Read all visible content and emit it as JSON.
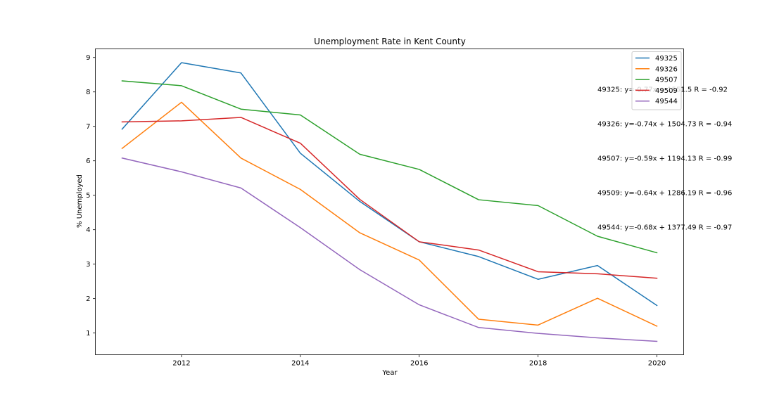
{
  "chart_data": {
    "type": "line",
    "title": "Unemployment Rate in Kent County",
    "xlabel": "Year",
    "ylabel": "% Unemployed",
    "xlim": [
      2010.55,
      2020.45
    ],
    "ylim": [
      0.37,
      9.25
    ],
    "xticks": [
      2012,
      2014,
      2016,
      2018,
      2020
    ],
    "yticks": [
      1,
      2,
      3,
      4,
      5,
      6,
      7,
      8,
      9
    ],
    "grid": false,
    "legend_position": "top-right",
    "x": [
      2011,
      2012,
      2013,
      2014,
      2015,
      2016,
      2017,
      2018,
      2019,
      2020
    ],
    "series": [
      {
        "name": "49325",
        "color": "#1f77b4",
        "values": [
          6.92,
          8.85,
          8.55,
          6.22,
          4.82,
          3.65,
          3.22,
          2.56,
          2.96,
          1.8
        ]
      },
      {
        "name": "49326",
        "color": "#ff7f0e",
        "values": [
          6.36,
          7.7,
          6.08,
          5.17,
          3.91,
          3.12,
          1.4,
          1.23,
          2.01,
          1.2
        ]
      },
      {
        "name": "49507",
        "color": "#2ca02c",
        "values": [
          8.32,
          8.18,
          7.5,
          7.33,
          6.19,
          5.75,
          4.87,
          4.7,
          3.81,
          3.33
        ]
      },
      {
        "name": "49509",
        "color": "#d62728",
        "values": [
          7.13,
          7.16,
          7.26,
          6.51,
          4.88,
          3.65,
          3.41,
          2.78,
          2.72,
          2.59
        ]
      },
      {
        "name": "49544",
        "color": "#9467bd",
        "values": [
          6.08,
          5.68,
          5.21,
          4.06,
          2.84,
          1.82,
          1.16,
          0.99,
          0.86,
          0.76
        ]
      }
    ],
    "annotations": [
      {
        "text": "49325: y=-0.77x + 1551.5 R = -0.92",
        "x": 2019,
        "y": 8.0
      },
      {
        "text": "49326: y=-0.74x + 1504.73 R = -0.94",
        "x": 2019,
        "y": 7.0
      },
      {
        "text": "49507: y=-0.59x + 1194.13 R = -0.99",
        "x": 2019,
        "y": 6.0
      },
      {
        "text": "49509: y=-0.64x + 1286.19 R = -0.96",
        "x": 2019,
        "y": 5.0
      },
      {
        "text": "49544: y=-0.68x + 1377.49 R = -0.97",
        "x": 2019,
        "y": 4.0
      }
    ]
  }
}
